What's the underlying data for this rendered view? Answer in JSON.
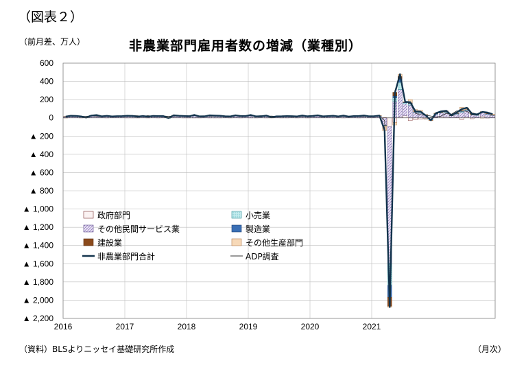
{
  "figure_label": "（図表２）",
  "unit": "（前月差、万人）",
  "title": "非農業部門雇用者数の増減（業種別）",
  "source": "（資料）BLSよりニッセイ基礎研究所作成",
  "frequency": "（月次）",
  "colors": {
    "government": "#d8b4b4",
    "services": "#c8b8e0",
    "retail": "#9fd6dc",
    "manufacturing": "#3a6fb5",
    "construction": "#8b4a1c",
    "other_production": "#f7d9b8",
    "nfp_total": "#13344d",
    "adp": "#333333"
  },
  "chart_data": {
    "type": "bar",
    "stacked": true,
    "title": "非農業部門雇用者数の増減（業種別）",
    "ylabel": "（前月差、万人）",
    "ylim": [
      -2200,
      600
    ],
    "yticks": [
      600,
      400,
      200,
      0,
      -200,
      -400,
      -600,
      -800,
      -1000,
      -1200,
      -1400,
      -1600,
      -1800,
      -2000,
      -2200
    ],
    "ytick_labels": [
      "600",
      "400",
      "200",
      "0",
      "▲ 200",
      "▲ 400",
      "▲ 600",
      "▲ 800",
      "▲ 1,000",
      "▲ 1,200",
      "▲ 1,400",
      "▲ 1,600",
      "▲ 1,800",
      "▲ 2,000",
      "▲ 2,200"
    ],
    "x_start": "2016-01",
    "xtick_labels": [
      "2016",
      "2017",
      "2018",
      "2019",
      "2020",
      "2021"
    ],
    "grid": true,
    "legend_position": "middle-left",
    "legend": [
      {
        "key": "government",
        "label": "政府部門",
        "kind": "bar"
      },
      {
        "key": "retail",
        "label": "小売業",
        "kind": "bar"
      },
      {
        "key": "services",
        "label": "その他民間サービス業",
        "kind": "bar"
      },
      {
        "key": "manufacturing",
        "label": "製造業",
        "kind": "bar"
      },
      {
        "key": "construction",
        "label": "建設業",
        "kind": "bar"
      },
      {
        "key": "other_production",
        "label": "その他生産部門",
        "kind": "bar"
      },
      {
        "key": "nfp_total",
        "label": "非農業部門合計",
        "kind": "line"
      },
      {
        "key": "adp",
        "label": "ADP調査",
        "kind": "line"
      }
    ],
    "nfp_total": [
      14,
      23,
      21,
      15,
      3,
      25,
      30,
      16,
      22,
      15,
      18,
      19,
      23,
      21,
      13,
      20,
      13,
      21,
      19,
      19,
      -2,
      28,
      23,
      20,
      17,
      32,
      16,
      17,
      27,
      25,
      23,
      17,
      15,
      27,
      20,
      20,
      31,
      16,
      17,
      25,
      6,
      16,
      17,
      19,
      18,
      15,
      26,
      17,
      21,
      27,
      16,
      19,
      23,
      15,
      25,
      14,
      19,
      20,
      26,
      17,
      18,
      25,
      -137,
      -2076,
      272,
      479,
      176,
      171,
      71,
      68,
      26,
      -27,
      52,
      71,
      78,
      27,
      58,
      96,
      110,
      45,
      38,
      65,
      58,
      40
    ],
    "adp": [
      20,
      21,
      19,
      15,
      17,
      21,
      18,
      17,
      16,
      15,
      21,
      16,
      24,
      26,
      23,
      17,
      25,
      17,
      19,
      21,
      15,
      19,
      19,
      25,
      23,
      24,
      20,
      20,
      18,
      18,
      19,
      20,
      21,
      22,
      18,
      25,
      22,
      19,
      24,
      18,
      20,
      16,
      15,
      13,
      11,
      12,
      17,
      18,
      24,
      20,
      18,
      20,
      22,
      16,
      17,
      18,
      17,
      15,
      17,
      18,
      19,
      20,
      -30,
      -2000,
      300,
      450,
      180,
      160,
      50,
      35,
      30,
      20,
      10,
      20,
      50,
      40,
      75,
      80,
      70,
      35,
      30,
      60,
      50,
      35
    ],
    "bars": {
      "government": [
        2,
        2,
        2,
        1,
        2,
        2,
        2,
        2,
        1,
        2,
        2,
        2,
        1,
        1,
        1,
        2,
        1,
        2,
        1,
        2,
        -3,
        2,
        2,
        1,
        1,
        1,
        1,
        2,
        1,
        1,
        1,
        2,
        1,
        2,
        1,
        2,
        1,
        1,
        2,
        1,
        1,
        2,
        1,
        1,
        2,
        1,
        2,
        1,
        2,
        2,
        2,
        2,
        2,
        2,
        1,
        2,
        2,
        1,
        2,
        2,
        3,
        2,
        3,
        -98,
        -50,
        10,
        25,
        -30,
        -20,
        -15,
        -10,
        -12,
        5,
        12,
        10,
        2,
        5,
        -20,
        10,
        -10,
        2,
        20,
        -2,
        2
      ],
      "services": [
        10,
        16,
        15,
        10,
        0,
        18,
        22,
        10,
        16,
        10,
        12,
        13,
        16,
        15,
        9,
        14,
        9,
        15,
        13,
        12,
        2,
        20,
        17,
        14,
        12,
        20,
        11,
        12,
        19,
        17,
        16,
        11,
        10,
        18,
        14,
        15,
        20,
        12,
        13,
        17,
        4,
        11,
        13,
        14,
        13,
        11,
        17,
        12,
        15,
        18,
        11,
        13,
        16,
        11,
        17,
        10,
        13,
        14,
        18,
        12,
        13,
        17,
        -80,
        -1500,
        180,
        300,
        130,
        140,
        60,
        50,
        30,
        -10,
        35,
        40,
        45,
        20,
        35,
        60,
        70,
        30,
        25,
        40,
        40,
        25
      ],
      "retail": [
        1,
        2,
        1,
        1,
        0,
        2,
        2,
        1,
        1,
        1,
        2,
        1,
        2,
        2,
        0,
        2,
        1,
        1,
        2,
        1,
        -1,
        2,
        1,
        2,
        1,
        2,
        1,
        1,
        2,
        2,
        2,
        1,
        1,
        2,
        2,
        1,
        3,
        1,
        0,
        2,
        0,
        1,
        1,
        1,
        1,
        1,
        2,
        1,
        1,
        2,
        1,
        1,
        2,
        1,
        2,
        1,
        1,
        1,
        2,
        1,
        1,
        2,
        -4,
        -240,
        40,
        80,
        10,
        15,
        5,
        10,
        2,
        -4,
        5,
        4,
        8,
        3,
        6,
        10,
        6,
        2,
        3,
        4,
        3,
        2
      ],
      "manufacturing": [
        1,
        1,
        1,
        0,
        0,
        1,
        1,
        1,
        1,
        0,
        1,
        1,
        1,
        1,
        1,
        1,
        0,
        1,
        1,
        1,
        0,
        1,
        1,
        1,
        1,
        2,
        1,
        1,
        1,
        1,
        1,
        1,
        1,
        1,
        1,
        1,
        1,
        1,
        1,
        1,
        0,
        1,
        1,
        1,
        1,
        0,
        1,
        1,
        0,
        1,
        0,
        1,
        1,
        0,
        1,
        0,
        1,
        1,
        1,
        0,
        0,
        1,
        -3,
        -130,
        20,
        35,
        5,
        5,
        2,
        3,
        2,
        3,
        2,
        2,
        3,
        1,
        3,
        4,
        3,
        2,
        2,
        2,
        2,
        1
      ],
      "construction": [
        1,
        2,
        1,
        1,
        0,
        1,
        2,
        1,
        2,
        1,
        1,
        1,
        2,
        1,
        1,
        1,
        1,
        1,
        1,
        2,
        0,
        2,
        1,
        1,
        1,
        3,
        1,
        1,
        2,
        2,
        2,
        1,
        1,
        2,
        1,
        1,
        3,
        1,
        0,
        2,
        0,
        1,
        1,
        1,
        1,
        1,
        2,
        1,
        2,
        2,
        1,
        1,
        1,
        0,
        2,
        1,
        1,
        1,
        2,
        1,
        1,
        2,
        -3,
        -100,
        40,
        30,
        5,
        5,
        2,
        1,
        -1,
        -2,
        2,
        3,
        3,
        1,
        2,
        2,
        2,
        1,
        2,
        2,
        2,
        1
      ],
      "other_production": [
        -1,
        0,
        1,
        2,
        1,
        1,
        1,
        1,
        1,
        1,
        0,
        1,
        1,
        1,
        1,
        0,
        1,
        1,
        1,
        1,
        0,
        1,
        1,
        1,
        1,
        4,
        1,
        0,
        2,
        2,
        1,
        1,
        1,
        2,
        1,
        0,
        3,
        0,
        1,
        2,
        1,
        0,
        0,
        1,
        0,
        1,
        2,
        1,
        1,
        2,
        1,
        0,
        1,
        1,
        2,
        0,
        1,
        2,
        1,
        1,
        0,
        1,
        -50,
        -8,
        -28,
        24,
        1,
        36,
        22,
        19,
        3,
        -2,
        3,
        10,
        9,
        0,
        7,
        40,
        19,
        20,
        4,
        -3,
        13,
        9
      ]
    }
  }
}
